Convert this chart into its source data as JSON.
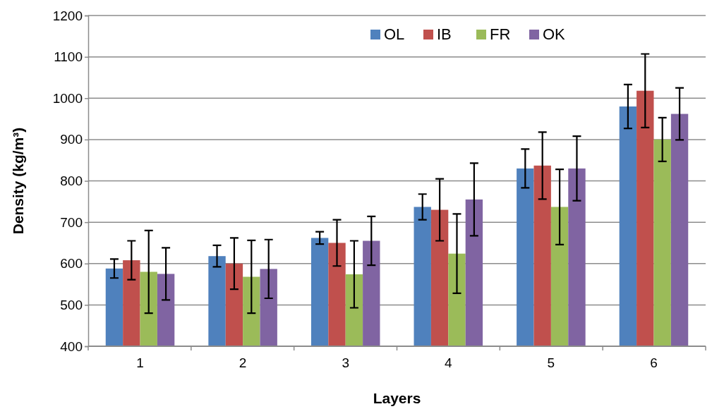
{
  "chart_data": {
    "type": "bar",
    "xlabel": "Layers",
    "ylabel": "Density (kg/m³)",
    "categories": [
      "1",
      "2",
      "3",
      "4",
      "5",
      "6"
    ],
    "series": [
      {
        "name": "OL",
        "color": "#4f81bd",
        "values": [
          588,
          618,
          662,
          737,
          830,
          980
        ],
        "errors": [
          23,
          26,
          15,
          31,
          47,
          53
        ]
      },
      {
        "name": "IB",
        "color": "#c0504d",
        "values": [
          608,
          600,
          650,
          730,
          837,
          1018
        ],
        "errors": [
          47,
          62,
          56,
          75,
          81,
          89
        ]
      },
      {
        "name": "FR",
        "color": "#9bbb59",
        "values": [
          580,
          568,
          574,
          624,
          737,
          900
        ],
        "errors": [
          100,
          88,
          81,
          96,
          91,
          53
        ]
      },
      {
        "name": "OK",
        "color": "#8064a2",
        "values": [
          575,
          587,
          655,
          755,
          830,
          962
        ],
        "errors": [
          63,
          71,
          59,
          88,
          78,
          63
        ]
      }
    ],
    "ylim": [
      400,
      1200
    ],
    "yticks": [
      400,
      500,
      600,
      700,
      800,
      900,
      1000,
      1100,
      1200
    ],
    "grid": "y",
    "legend": "top"
  }
}
